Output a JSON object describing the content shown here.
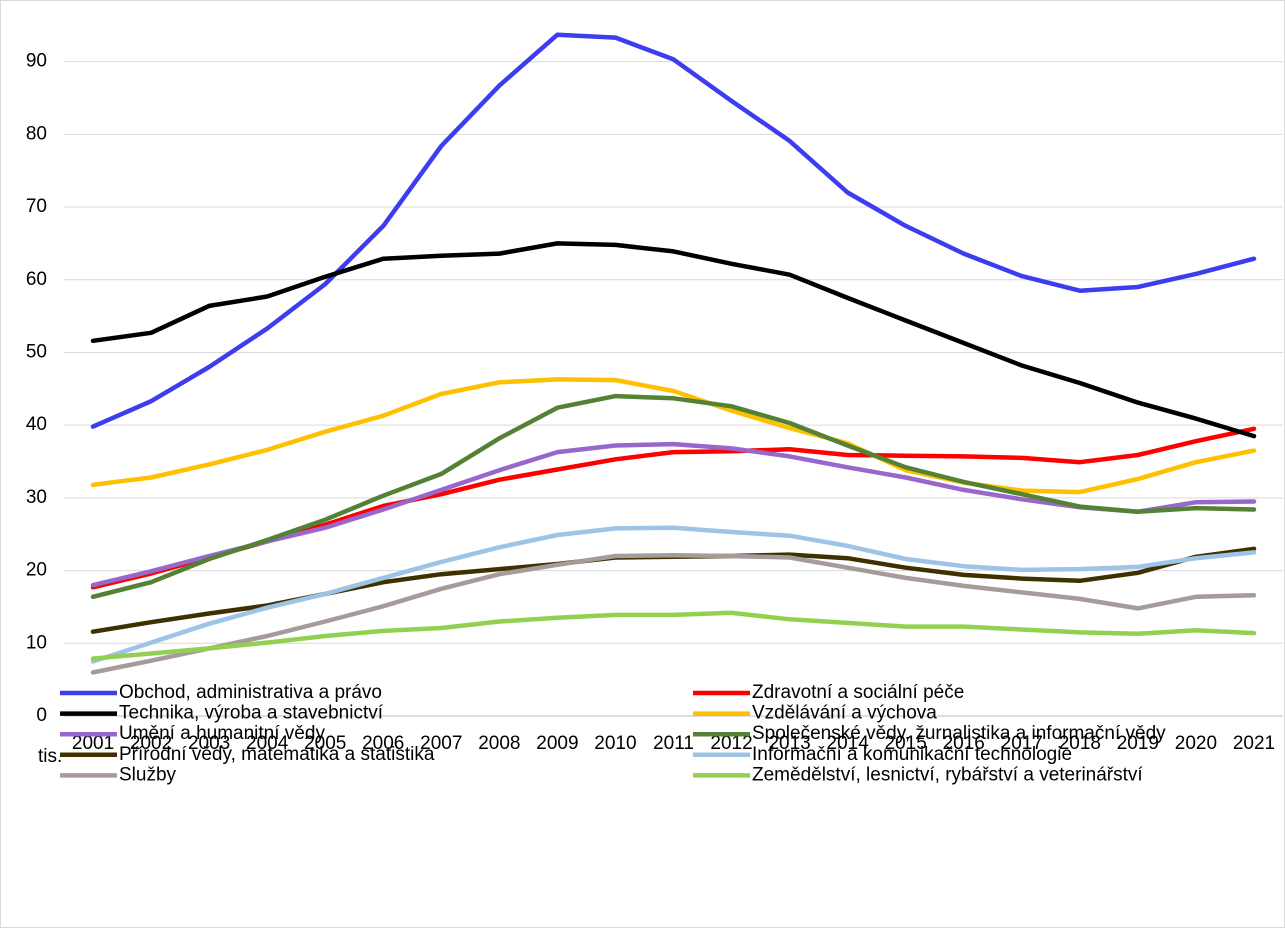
{
  "chart_data": {
    "type": "line",
    "y_axis_label": "tis.",
    "categories": [
      "2001",
      "2002",
      "2003",
      "2004",
      "2005",
      "2006",
      "2007",
      "2008",
      "2009",
      "2010",
      "2011",
      "2012",
      "2013",
      "2014",
      "2015",
      "2016",
      "2017",
      "2018",
      "2019",
      "2020",
      "2021"
    ],
    "ylim": [
      0,
      96
    ],
    "yticks": [
      0,
      10,
      20,
      30,
      40,
      50,
      60,
      70,
      80,
      90
    ],
    "grid": true,
    "legend": "bottom",
    "series": [
      {
        "name": "Obchod, administrativa a právo",
        "color": "#3d3df0",
        "values": [
          39.8,
          43.3,
          48,
          53.3,
          59.4,
          67.4,
          78.4,
          86.7,
          93.7,
          93.3,
          90.3,
          84.6,
          79.1,
          72,
          67.4,
          63.6,
          60.5,
          58.5,
          59,
          60.8,
          62.9
        ]
      },
      {
        "name": "Zdravotní a sociální péče",
        "color": "#ff0000",
        "values": [
          17.7,
          19.6,
          21.8,
          24,
          26.3,
          28.9,
          30.5,
          32.5,
          33.9,
          35.3,
          36.3,
          36.4,
          36.7,
          35.9,
          35.8,
          35.7,
          35.5,
          34.9,
          35.9,
          37.8,
          39.5
        ]
      },
      {
        "name": "Technika, výroba a stavebnictví",
        "color": "#000000",
        "values": [
          51.6,
          52.7,
          56.4,
          57.7,
          60.4,
          62.9,
          63.3,
          63.6,
          65,
          64.8,
          63.9,
          62.2,
          60.7,
          57.5,
          54.4,
          51.3,
          48.2,
          45.8,
          43.1,
          40.9,
          38.5
        ]
      },
      {
        "name": "Vzdělávání a výchova",
        "color": "#ffc000",
        "values": [
          31.8,
          32.8,
          34.6,
          36.6,
          39.1,
          41.3,
          44.3,
          45.9,
          46.3,
          46.2,
          44.7,
          42,
          39.6,
          37.5,
          33.8,
          32.1,
          31,
          30.8,
          32.6,
          34.9,
          36.5
        ]
      },
      {
        "name": "Umění a humanitní vědy",
        "color": "#9966cc",
        "values": [
          18,
          19.9,
          22,
          24,
          25.9,
          28.4,
          31.1,
          33.8,
          36.3,
          37.2,
          37.4,
          36.8,
          35.7,
          34.2,
          32.8,
          31.1,
          29.8,
          28.7,
          28.1,
          29.4,
          29.5
        ]
      },
      {
        "name": "Společenské vědy, žurnalistika a informační vědy",
        "color": "#548235",
        "values": [
          16.4,
          18.4,
          21.6,
          24.2,
          27,
          30.3,
          33.3,
          38.2,
          42.4,
          44,
          43.7,
          42.6,
          40.3,
          37.2,
          34.2,
          32.2,
          30.5,
          28.8,
          28.1,
          28.6,
          28.4
        ]
      },
      {
        "name": "Přírodní vědy, matematika a statistika",
        "color": "#3f3000",
        "values": [
          11.6,
          12.9,
          14.1,
          15.2,
          16.8,
          18.4,
          19.5,
          20.2,
          20.9,
          21.8,
          21.9,
          22,
          22.2,
          21.7,
          20.4,
          19.4,
          18.9,
          18.6,
          19.7,
          21.9,
          23
        ]
      },
      {
        "name": "Informační a komunikační technologie",
        "color": "#9dc3e6",
        "values": [
          7.5,
          10.1,
          12.7,
          14.9,
          16.8,
          19,
          21.2,
          23.2,
          24.9,
          25.8,
          25.9,
          25.3,
          24.8,
          23.4,
          21.6,
          20.6,
          20.1,
          20.2,
          20.5,
          21.7,
          22.5
        ]
      },
      {
        "name": "Služby",
        "color": "#a69b9b",
        "values": [
          6,
          7.6,
          9.3,
          11,
          13,
          15.1,
          17.5,
          19.5,
          20.8,
          22,
          22.1,
          22,
          21.8,
          20.4,
          19,
          17.9,
          17,
          16.1,
          14.8,
          16.4,
          16.6
        ]
      },
      {
        "name": "Zemědělství, lesnictví, rybářství a veterinářství",
        "color": "#92d050",
        "values": [
          7.9,
          8.6,
          9.3,
          10.1,
          11,
          11.7,
          12.1,
          13,
          13.5,
          13.9,
          13.9,
          14.2,
          13.3,
          12.8,
          12.3,
          12.3,
          11.9,
          11.5,
          11.3,
          11.8,
          11.4
        ]
      }
    ]
  }
}
